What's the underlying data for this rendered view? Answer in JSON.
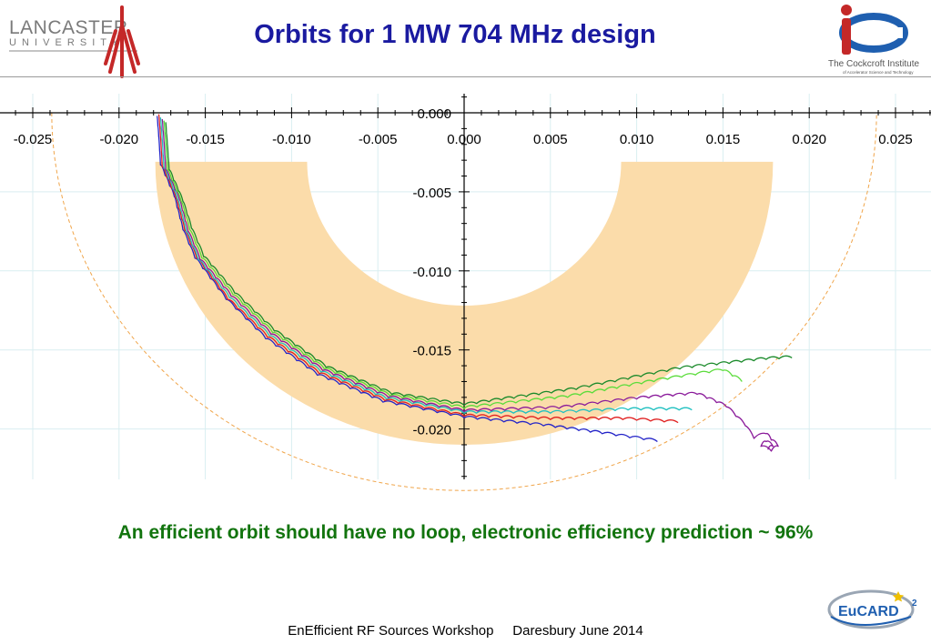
{
  "header": {
    "title": "Orbits for 1 MW 704 MHz design",
    "lancaster_logo_text": [
      "LANCASTER",
      "U N I V E R S I T Y"
    ],
    "cockcroft_logo_text": [
      "The Cockcroft Institute",
      "of Accelerator Science and Technology"
    ]
  },
  "caption": "An efficient orbit should have no loop, electronic efficiency prediction ~ 96%",
  "footer": "EnEfficient RF Sources Workshop     Daresbury June 2014",
  "eucard_logo_text": "EuCARD",
  "colors": {
    "title": "#1a1aa0",
    "caption": "#12740e",
    "band": "#fbdcaa",
    "grid": "#d9eef1",
    "boundary": "#f0a54a"
  },
  "chart_data": {
    "type": "line",
    "title": "",
    "xlabel": "",
    "ylabel": "",
    "xlim": [
      -0.0265,
      0.0275
    ],
    "ylim": [
      -0.0235,
      0.0013
    ],
    "grid": true,
    "x_ticks": [
      "-0.025",
      "-0.020",
      "-0.015",
      "-0.010",
      "-0.005",
      "0.000",
      "0.005",
      "0.010",
      "0.015",
      "0.020",
      "0.025"
    ],
    "y_ticks": [
      "0.000",
      "-0.005",
      "-0.010",
      "-0.015",
      "-0.020"
    ],
    "band": {
      "center": [
        0.0,
        -0.0031
      ],
      "inner_radius": 0.0091,
      "outer_radius": 0.0179
    },
    "boundary_circle": {
      "center": [
        0.0,
        0.0
      ],
      "radius": 0.0239
    },
    "series": [
      {
        "color": "#2323c8",
        "points": [
          [
            -0.0178,
            -0.0002
          ],
          [
            -0.0177,
            -0.0015
          ],
          [
            -0.0176,
            -0.0033
          ],
          [
            -0.0168,
            -0.0053
          ],
          [
            -0.0163,
            -0.0074
          ],
          [
            -0.0156,
            -0.0092
          ],
          [
            -0.0138,
            -0.0118
          ],
          [
            -0.0115,
            -0.0143
          ],
          [
            -0.0085,
            -0.0166
          ],
          [
            -0.0047,
            -0.0183
          ],
          [
            0.0,
            -0.0193
          ],
          [
            0.0046,
            -0.0198
          ],
          [
            0.008,
            -0.0203
          ],
          [
            0.0112,
            -0.0208
          ]
        ]
      },
      {
        "color": "#e02020",
        "points": [
          [
            -0.0177,
            -0.0001
          ],
          [
            -0.0176,
            -0.0015
          ],
          [
            -0.0175,
            -0.0034
          ],
          [
            -0.0167,
            -0.0054
          ],
          [
            -0.0162,
            -0.0074
          ],
          [
            -0.0155,
            -0.0092
          ],
          [
            -0.0137,
            -0.0118
          ],
          [
            -0.0114,
            -0.0142
          ],
          [
            -0.0084,
            -0.0165
          ],
          [
            -0.0046,
            -0.0182
          ],
          [
            0.0,
            -0.0192
          ],
          [
            0.005,
            -0.0194
          ],
          [
            0.0092,
            -0.0194
          ],
          [
            0.0124,
            -0.0196
          ]
        ]
      },
      {
        "color": "#20c0c0",
        "points": [
          [
            -0.0176,
            -0.0003
          ],
          [
            -0.0175,
            -0.0017
          ],
          [
            -0.0174,
            -0.0035
          ],
          [
            -0.0166,
            -0.0055
          ],
          [
            -0.0161,
            -0.0075
          ],
          [
            -0.0154,
            -0.0093
          ],
          [
            -0.0136,
            -0.0117
          ],
          [
            -0.0113,
            -0.0141
          ],
          [
            -0.0083,
            -0.0164
          ],
          [
            -0.0045,
            -0.0181
          ],
          [
            0.0,
            -0.019
          ],
          [
            0.005,
            -0.019
          ],
          [
            0.0095,
            -0.0188
          ],
          [
            0.0132,
            -0.0188
          ]
        ]
      },
      {
        "color": "#8a1a9a",
        "points": [
          [
            -0.0175,
            -0.0004
          ],
          [
            -0.0174,
            -0.0018
          ],
          [
            -0.0173,
            -0.0036
          ],
          [
            -0.0165,
            -0.0055
          ],
          [
            -0.016,
            -0.0075
          ],
          [
            -0.0153,
            -0.0093
          ],
          [
            -0.0135,
            -0.0116
          ],
          [
            -0.0112,
            -0.014
          ],
          [
            -0.0082,
            -0.0163
          ],
          [
            -0.0044,
            -0.018
          ],
          [
            0.0,
            -0.0189
          ],
          [
            0.0055,
            -0.0187
          ],
          [
            0.01,
            -0.0181
          ],
          [
            0.0135,
            -0.0178
          ],
          [
            0.0152,
            -0.0186
          ],
          [
            0.0163,
            -0.0198
          ],
          [
            0.0168,
            -0.0206
          ],
          [
            0.0175,
            -0.0203
          ],
          [
            0.0178,
            -0.0207
          ],
          [
            0.0182,
            -0.0211
          ],
          [
            0.0178,
            -0.0214
          ],
          [
            0.0172,
            -0.0211
          ],
          [
            0.0175,
            -0.0208
          ],
          [
            0.0179,
            -0.0211
          ],
          [
            0.0176,
            -0.0213
          ]
        ]
      },
      {
        "color": "#5adc3a",
        "points": [
          [
            -0.0174,
            -0.0005
          ],
          [
            -0.0173,
            -0.0019
          ],
          [
            -0.0172,
            -0.0036
          ],
          [
            -0.0164,
            -0.0056
          ],
          [
            -0.0159,
            -0.0074
          ],
          [
            -0.0152,
            -0.0092
          ],
          [
            -0.0134,
            -0.0115
          ],
          [
            -0.0111,
            -0.0139
          ],
          [
            -0.0081,
            -0.0162
          ],
          [
            -0.0043,
            -0.0179
          ],
          [
            0.0,
            -0.0187
          ],
          [
            0.006,
            -0.018
          ],
          [
            0.011,
            -0.017
          ],
          [
            0.015,
            -0.0163
          ],
          [
            0.0161,
            -0.017
          ]
        ]
      },
      {
        "color": "#1a8a2a",
        "points": [
          [
            -0.0173,
            -0.0006
          ],
          [
            -0.0172,
            -0.002
          ],
          [
            -0.0171,
            -0.0036
          ],
          [
            -0.0163,
            -0.0056
          ],
          [
            -0.0158,
            -0.0073
          ],
          [
            -0.0151,
            -0.0091
          ],
          [
            -0.0133,
            -0.0114
          ],
          [
            -0.011,
            -0.0138
          ],
          [
            -0.008,
            -0.0161
          ],
          [
            -0.0042,
            -0.0178
          ],
          [
            0.0,
            -0.0185
          ],
          [
            0.0065,
            -0.0175
          ],
          [
            0.0125,
            -0.0162
          ],
          [
            0.0175,
            -0.0156
          ],
          [
            0.019,
            -0.0155
          ]
        ]
      }
    ]
  }
}
